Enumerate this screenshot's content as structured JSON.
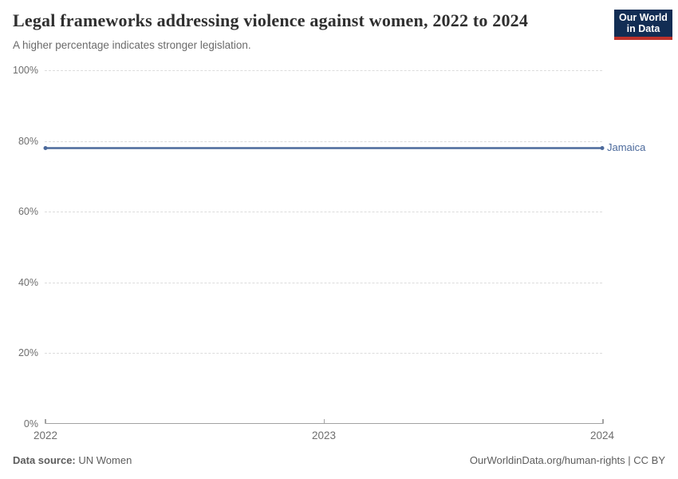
{
  "header": {
    "title": "Legal frameworks addressing violence against women, 2022 to 2024",
    "subtitle": "A higher percentage indicates stronger legislation.",
    "logo": {
      "line1": "Our World",
      "line2": "in Data"
    }
  },
  "chart_data": {
    "type": "line",
    "title": "Legal frameworks addressing violence against women, 2022 to 2024",
    "subtitle": "A higher percentage indicates stronger legislation.",
    "x": [
      2022,
      2023,
      2024
    ],
    "xlim": [
      2022,
      2024
    ],
    "ylim": [
      0,
      100
    ],
    "xlabel": "",
    "ylabel": "",
    "series": [
      {
        "name": "Jamaica",
        "values": [
          78,
          78,
          78
        ],
        "color": "#4C6A9C"
      }
    ],
    "yticks": [
      {
        "value": 0,
        "label": "0%"
      },
      {
        "value": 20,
        "label": "20%"
      },
      {
        "value": 40,
        "label": "40%"
      },
      {
        "value": 60,
        "label": "60%"
      },
      {
        "value": 80,
        "label": "80%"
      },
      {
        "value": 100,
        "label": "100%"
      }
    ],
    "xticks": [
      {
        "value": 2022,
        "label": "2022"
      },
      {
        "value": 2023,
        "label": "2023"
      },
      {
        "value": 2024,
        "label": "2024"
      }
    ],
    "grid": "horizontal-dashed",
    "legend": "inline-end-label"
  },
  "footer": {
    "source_label": "Data source:",
    "source_value": "UN Women",
    "right_text": "OurWorldinData.org/human-rights | CC BY"
  },
  "colors": {
    "line": "#4C6A9C",
    "grid": "#dcdcdc",
    "axis": "#a2a2a2",
    "tick_text": "#6e6e6e",
    "logo_bg": "#122d54",
    "logo_stripe": "#be322b"
  }
}
